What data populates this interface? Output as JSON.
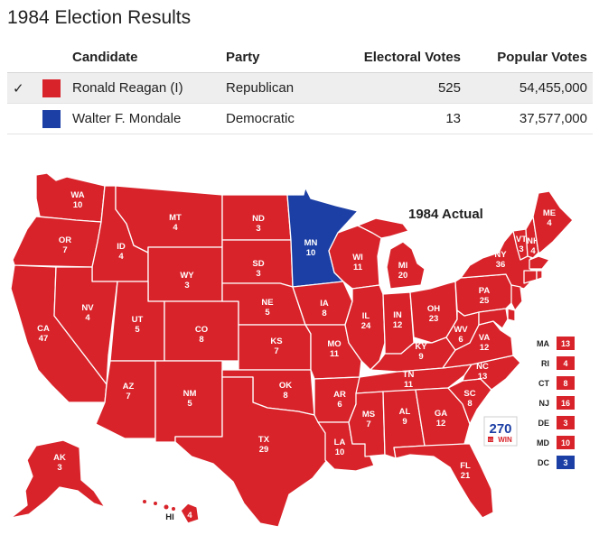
{
  "title": "1984 Election Results",
  "table": {
    "headers": {
      "candidate": "Candidate",
      "party": "Party",
      "electoral_votes": "Electoral Votes",
      "popular_votes": "Popular Votes"
    },
    "rows": [
      {
        "check": "✓",
        "color": "#d8232a",
        "name": "Ronald Reagan (I)",
        "party": "Republican",
        "electoral_votes": "525",
        "popular_votes": "54,455,000",
        "winner": true
      },
      {
        "check": "",
        "color": "#1c3fa5",
        "name": "Walter F. Mondale",
        "party": "Democratic",
        "electoral_votes": "13",
        "popular_votes": "37,577,000",
        "winner": false
      }
    ]
  },
  "map": {
    "title": "1984 Actual",
    "colors": {
      "R": "#d8232a",
      "D": "#1c3fa5"
    },
    "logo": {
      "top": "270",
      "bottom": "WIN",
      "prefix": "TO"
    },
    "states": [
      {
        "abbr": "WA",
        "ev": "10",
        "party": "R"
      },
      {
        "abbr": "OR",
        "ev": "7",
        "party": "R"
      },
      {
        "abbr": "CA",
        "ev": "47",
        "party": "R"
      },
      {
        "abbr": "ID",
        "ev": "4",
        "party": "R"
      },
      {
        "abbr": "NV",
        "ev": "4",
        "party": "R"
      },
      {
        "abbr": "MT",
        "ev": "4",
        "party": "R"
      },
      {
        "abbr": "WY",
        "ev": "3",
        "party": "R"
      },
      {
        "abbr": "UT",
        "ev": "5",
        "party": "R"
      },
      {
        "abbr": "AZ",
        "ev": "7",
        "party": "R"
      },
      {
        "abbr": "CO",
        "ev": "8",
        "party": "R"
      },
      {
        "abbr": "NM",
        "ev": "5",
        "party": "R"
      },
      {
        "abbr": "ND",
        "ev": "3",
        "party": "R"
      },
      {
        "abbr": "SD",
        "ev": "3",
        "party": "R"
      },
      {
        "abbr": "NE",
        "ev": "5",
        "party": "R"
      },
      {
        "abbr": "KS",
        "ev": "7",
        "party": "R"
      },
      {
        "abbr": "OK",
        "ev": "8",
        "party": "R"
      },
      {
        "abbr": "TX",
        "ev": "29",
        "party": "R"
      },
      {
        "abbr": "MN",
        "ev": "10",
        "party": "D"
      },
      {
        "abbr": "IA",
        "ev": "8",
        "party": "R"
      },
      {
        "abbr": "MO",
        "ev": "11",
        "party": "R"
      },
      {
        "abbr": "AR",
        "ev": "6",
        "party": "R"
      },
      {
        "abbr": "LA",
        "ev": "10",
        "party": "R"
      },
      {
        "abbr": "WI",
        "ev": "11",
        "party": "R"
      },
      {
        "abbr": "IL",
        "ev": "24",
        "party": "R"
      },
      {
        "abbr": "MI",
        "ev": "20",
        "party": "R"
      },
      {
        "abbr": "IN",
        "ev": "12",
        "party": "R"
      },
      {
        "abbr": "OH",
        "ev": "23",
        "party": "R"
      },
      {
        "abbr": "KY",
        "ev": "9",
        "party": "R"
      },
      {
        "abbr": "TN",
        "ev": "11",
        "party": "R"
      },
      {
        "abbr": "MS",
        "ev": "7",
        "party": "R"
      },
      {
        "abbr": "AL",
        "ev": "9",
        "party": "R"
      },
      {
        "abbr": "GA",
        "ev": "12",
        "party": "R"
      },
      {
        "abbr": "FL",
        "ev": "21",
        "party": "R"
      },
      {
        "abbr": "SC",
        "ev": "8",
        "party": "R"
      },
      {
        "abbr": "NC",
        "ev": "13",
        "party": "R"
      },
      {
        "abbr": "VA",
        "ev": "12",
        "party": "R"
      },
      {
        "abbr": "WV",
        "ev": "6",
        "party": "R"
      },
      {
        "abbr": "PA",
        "ev": "25",
        "party": "R"
      },
      {
        "abbr": "NY",
        "ev": "36",
        "party": "R"
      },
      {
        "abbr": "VT",
        "ev": "3",
        "party": "R"
      },
      {
        "abbr": "NH",
        "ev": "4",
        "party": "R"
      },
      {
        "abbr": "ME",
        "ev": "4",
        "party": "R"
      },
      {
        "abbr": "AK",
        "ev": "3",
        "party": "R"
      },
      {
        "abbr": "HI",
        "ev": "4",
        "party": "R"
      }
    ],
    "small_states": [
      {
        "abbr": "MA",
        "ev": "13",
        "party": "R"
      },
      {
        "abbr": "RI",
        "ev": "4",
        "party": "R"
      },
      {
        "abbr": "CT",
        "ev": "8",
        "party": "R"
      },
      {
        "abbr": "NJ",
        "ev": "16",
        "party": "R"
      },
      {
        "abbr": "DE",
        "ev": "3",
        "party": "R"
      },
      {
        "abbr": "MD",
        "ev": "10",
        "party": "R"
      },
      {
        "abbr": "DC",
        "ev": "3",
        "party": "D"
      }
    ]
  }
}
